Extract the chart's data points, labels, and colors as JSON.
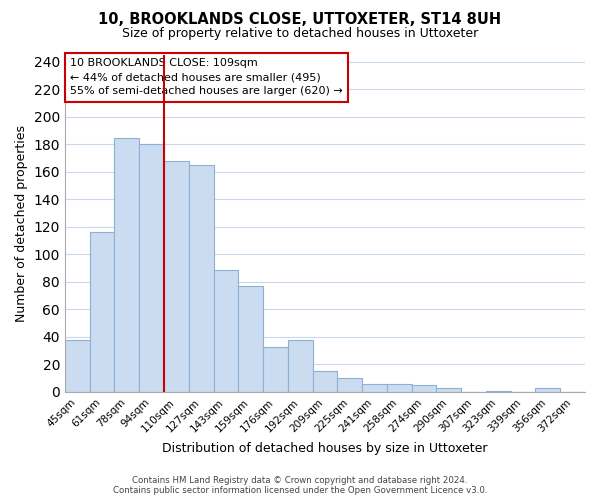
{
  "title": "10, BROOKLANDS CLOSE, UTTOXETER, ST14 8UH",
  "subtitle": "Size of property relative to detached houses in Uttoxeter",
  "xlabel": "Distribution of detached houses by size in Uttoxeter",
  "ylabel": "Number of detached properties",
  "bar_labels": [
    "45sqm",
    "61sqm",
    "78sqm",
    "94sqm",
    "110sqm",
    "127sqm",
    "143sqm",
    "159sqm",
    "176sqm",
    "192sqm",
    "209sqm",
    "225sqm",
    "241sqm",
    "258sqm",
    "274sqm",
    "290sqm",
    "307sqm",
    "323sqm",
    "339sqm",
    "356sqm",
    "372sqm"
  ],
  "bar_values": [
    38,
    116,
    185,
    180,
    168,
    165,
    89,
    77,
    33,
    38,
    15,
    10,
    6,
    6,
    5,
    3,
    0,
    1,
    0,
    3,
    0
  ],
  "bar_color": "#ccdcf0",
  "bar_edge_color": "#8db0d8",
  "vline_index": 4,
  "vline_color": "#cc0000",
  "ylim": [
    0,
    245
  ],
  "yticks": [
    0,
    20,
    40,
    60,
    80,
    100,
    120,
    140,
    160,
    180,
    200,
    220,
    240
  ],
  "annotation_title": "10 BROOKLANDS CLOSE: 109sqm",
  "annotation_line1": "← 44% of detached houses are smaller (495)",
  "annotation_line2": "55% of semi-detached houses are larger (620) →",
  "footer_line1": "Contains HM Land Registry data © Crown copyright and database right 2024.",
  "footer_line2": "Contains public sector information licensed under the Open Government Licence v3.0.",
  "background_color": "#ffffff",
  "grid_color": "#c8d8ec"
}
